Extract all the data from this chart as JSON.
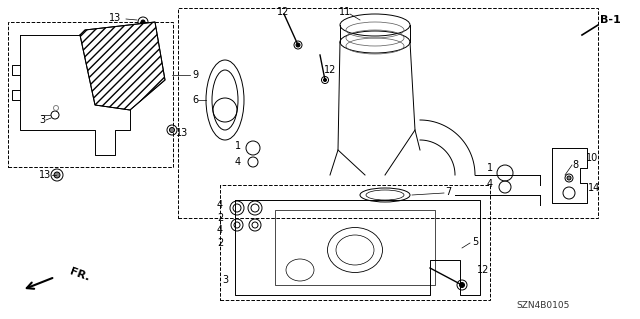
{
  "bg_color": "#ffffff",
  "fig_width": 6.4,
  "fig_height": 3.19,
  "diagram_code": "SZN4B0105"
}
